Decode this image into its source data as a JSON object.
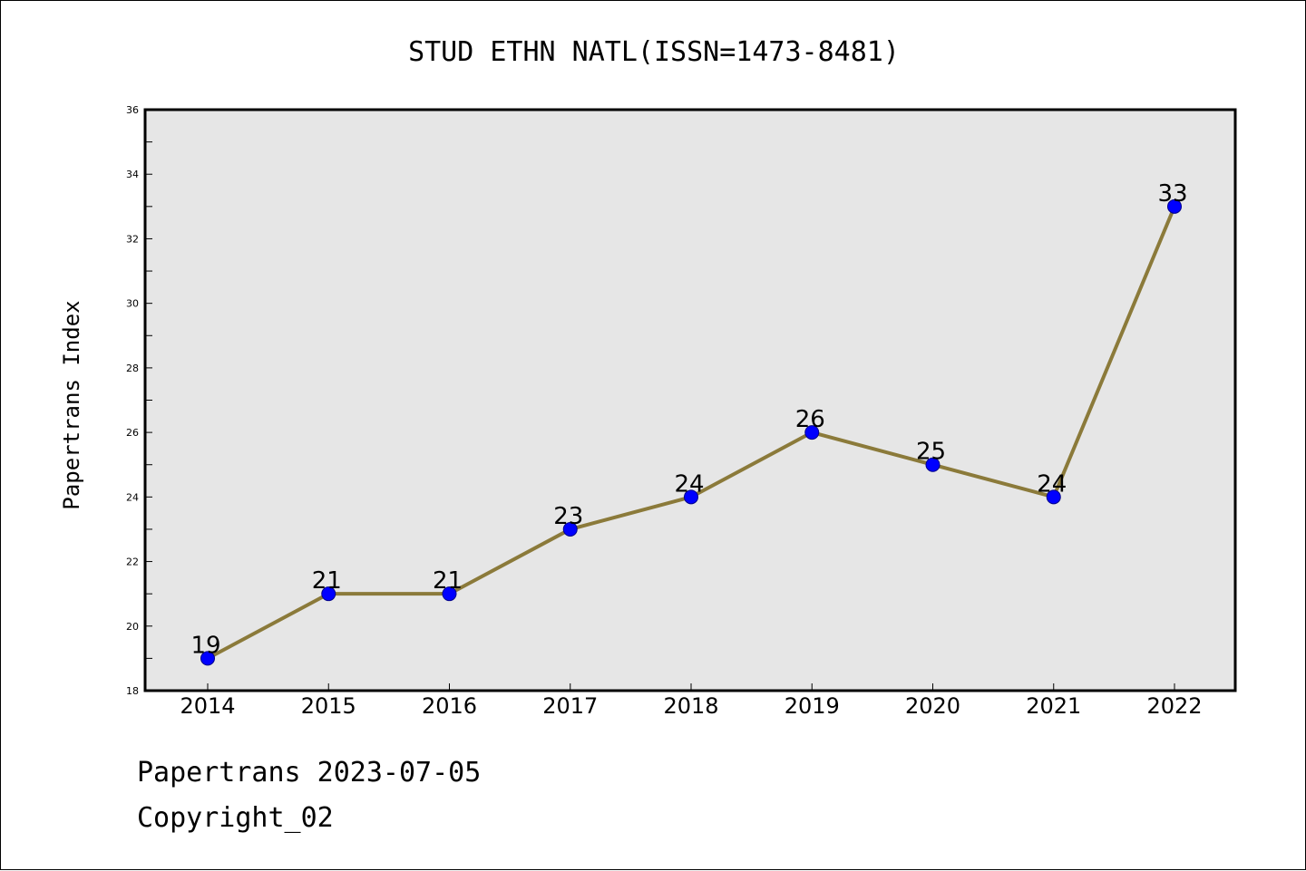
{
  "chart_data": {
    "type": "line",
    "title": "STUD ETHN NATL(ISSN=1473-8481)",
    "xlabel": "",
    "ylabel": "Papertrans Index",
    "categories": [
      "2014",
      "2015",
      "2016",
      "2017",
      "2018",
      "2019",
      "2020",
      "2021",
      "2022"
    ],
    "series": [
      {
        "values": [
          19,
          21,
          21,
          23,
          24,
          26,
          25,
          24,
          33
        ]
      }
    ],
    "data_labels": [
      "19",
      "21",
      "21",
      "23",
      "24",
      "26",
      "25",
      "24",
      "33"
    ],
    "ylim": [
      18,
      36
    ],
    "yticks_major": [
      18,
      20,
      22,
      24,
      26,
      28,
      30,
      32,
      34,
      36
    ],
    "ytick_labels": [
      "18",
      "20",
      "22",
      "24",
      "26",
      "28",
      "30",
      "32",
      "34",
      "36"
    ],
    "grid": false,
    "legend": "none",
    "colors": {
      "plot_background": "#e6e6e6",
      "line": "#8b7a3a",
      "marker_fill": "#0000ff",
      "marker_edge": "#00008b",
      "text": "#000000"
    }
  },
  "footer": {
    "line1": "Papertrans 2023-07-05",
    "line2": "Copyright_02"
  }
}
